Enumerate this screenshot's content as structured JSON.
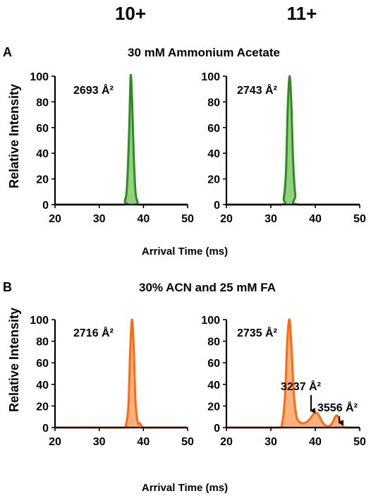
{
  "charge_labels": [
    "10+",
    "11+"
  ],
  "panels": [
    {
      "letter": "A",
      "title": "30 mM Ammonium Acetate"
    },
    {
      "letter": "B",
      "title": "30% ACN and 25 mM FA"
    }
  ],
  "colors": {
    "A_line": "#2f8a23",
    "A_fill": "#8fd27e",
    "B_line": "#ff6a10",
    "B_fill": "#ffb27e"
  },
  "chart_data": [
    {
      "type": "area",
      "panel": "A",
      "charge": "10+",
      "xlabel": "Arrival Time (ms)",
      "ylabel": "Relative Intensity",
      "xlim": [
        20,
        50
      ],
      "ylim": [
        0,
        100
      ],
      "xticks": [
        20,
        30,
        40,
        50
      ],
      "yticks": [
        0,
        20,
        40,
        60,
        80,
        100
      ],
      "color": "A",
      "series": [
        {
          "x": [
            20,
            35.0,
            35.8,
            36.3,
            36.8,
            37.1,
            37.4,
            37.8,
            38.2,
            38.7,
            39.3,
            50
          ],
          "y": [
            0,
            0,
            3,
            15,
            60,
            100,
            85,
            40,
            10,
            2,
            0,
            0
          ]
        }
      ],
      "annotations": [
        {
          "text": "2693 Å²"
        }
      ]
    },
    {
      "type": "area",
      "panel": "A",
      "charge": "11+",
      "xlabel": "Arrival Time (ms)",
      "xlim": [
        20,
        50
      ],
      "ylim": [
        0,
        100
      ],
      "xticks": [
        20,
        30,
        40,
        50
      ],
      "yticks": [
        0,
        20,
        40,
        60,
        80,
        100
      ],
      "color": "A",
      "series": [
        {
          "x": [
            20,
            32.2,
            32.9,
            33.4,
            33.8,
            34.2,
            34.6,
            35.0,
            35.5,
            36.2,
            50
          ],
          "y": [
            0,
            0,
            5,
            25,
            75,
            100,
            80,
            35,
            8,
            0,
            0
          ]
        }
      ],
      "annotations": [
        {
          "text": "2743 Å²"
        }
      ]
    },
    {
      "type": "area",
      "panel": "B",
      "charge": "10+",
      "xlabel": "Arrival Time (ms)",
      "ylabel": "Relative Intensity",
      "xlim": [
        20,
        50
      ],
      "ylim": [
        0,
        100
      ],
      "xticks": [
        20,
        30,
        40,
        50
      ],
      "yticks": [
        0,
        20,
        40,
        60,
        80,
        100
      ],
      "color": "B",
      "series": [
        {
          "x": [
            20,
            35.2,
            36.0,
            36.6,
            37.0,
            37.4,
            37.8,
            38.2,
            38.7,
            39.2,
            39.7,
            40.3,
            50
          ],
          "y": [
            0,
            0,
            2,
            20,
            70,
            100,
            75,
            25,
            5,
            4,
            1,
            0,
            0
          ]
        }
      ],
      "annotations": [
        {
          "text": "2716 Å²"
        }
      ]
    },
    {
      "type": "area",
      "panel": "B",
      "charge": "11+",
      "xlabel": "Arrival Time (ms)",
      "xlim": [
        20,
        50
      ],
      "ylim": [
        0,
        100
      ],
      "xticks": [
        20,
        30,
        40,
        50
      ],
      "yticks": [
        0,
        20,
        40,
        60,
        80,
        100
      ],
      "color": "B",
      "series": [
        {
          "x": [
            20,
            31.5,
            32.5,
            33.2,
            33.7,
            34.2,
            34.7,
            35.2,
            35.8,
            36.5,
            37.2,
            38.0,
            38.8,
            39.5,
            40.0,
            40.5,
            41.0,
            41.6,
            42.3,
            43.0,
            43.8,
            44.5,
            45.0,
            45.6,
            46.3,
            47.0,
            50
          ],
          "y": [
            0,
            0,
            3,
            30,
            80,
            100,
            70,
            30,
            10,
            5,
            4,
            5,
            8,
            12,
            14,
            13,
            10,
            5,
            2,
            1,
            4,
            10,
            11,
            6,
            1,
            0,
            0
          ]
        }
      ],
      "annotations": [
        {
          "text": "2735 Å²"
        },
        {
          "text": "3237 Å²"
        },
        {
          "text": "3556 Å²"
        }
      ]
    }
  ]
}
